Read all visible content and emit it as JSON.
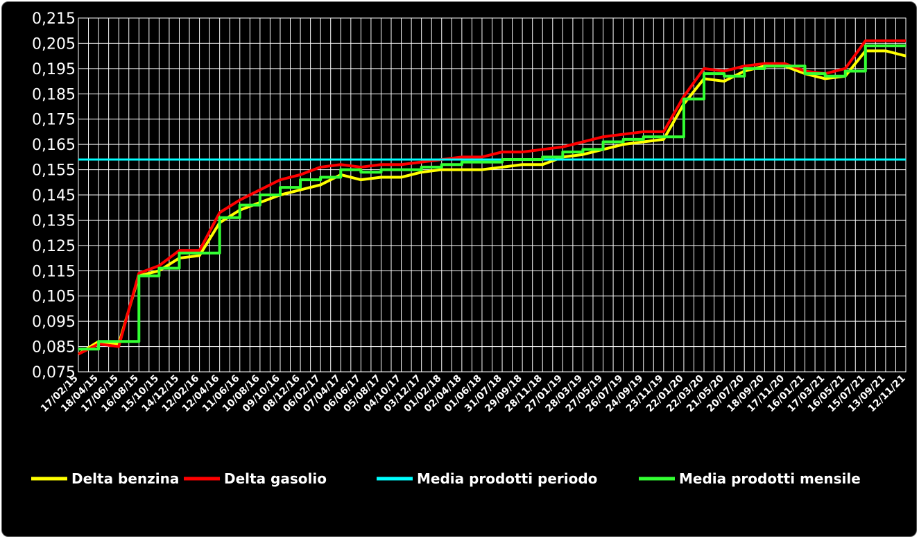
{
  "chart_data": {
    "type": "line",
    "title": "",
    "xlabel": "",
    "ylabel": "",
    "ylim": [
      0.075,
      0.215
    ],
    "y_ticks": [
      "0,075",
      "0,085",
      "0,095",
      "0,105",
      "0,115",
      "0,125",
      "0,135",
      "0,145",
      "0,155",
      "0,165",
      "0,175",
      "0,185",
      "0,195",
      "0,205",
      "0,215"
    ],
    "x_ticks": [
      "17/02/15",
      "18/04/15",
      "17/06/15",
      "16/08/15",
      "15/10/15",
      "14/12/15",
      "12/02/16",
      "12/04/16",
      "11/06/16",
      "10/08/16",
      "09/10/16",
      "08/12/16",
      "06/02/17",
      "07/04/17",
      "06/06/17",
      "05/08/17",
      "04/10/17",
      "03/12/17",
      "01/02/18",
      "02/04/18",
      "01/06/18",
      "31/07/18",
      "29/09/18",
      "28/11/18",
      "27/01/19",
      "28/03/19",
      "27/05/19",
      "26/07/19",
      "24/09/19",
      "23/11/19",
      "22/01/20",
      "22/03/20",
      "21/05/20",
      "20/07/20",
      "18/09/20",
      "17/11/20",
      "16/01/21",
      "17/03/21",
      "16/05/21",
      "15/07/21",
      "13/09/21",
      "12/11/21"
    ],
    "grid": true,
    "legend_position": "bottom",
    "series": [
      {
        "name": "Delta benzina",
        "color": "#ffff00",
        "values": [
          0.082,
          0.087,
          0.086,
          0.113,
          0.115,
          0.12,
          0.121,
          0.134,
          0.139,
          0.142,
          0.145,
          0.147,
          0.149,
          0.153,
          0.151,
          0.152,
          0.152,
          0.154,
          0.155,
          0.155,
          0.155,
          0.156,
          0.157,
          0.157,
          0.16,
          0.161,
          0.163,
          0.165,
          0.166,
          0.167,
          0.181,
          0.191,
          0.19,
          0.194,
          0.196,
          0.196,
          0.193,
          0.191,
          0.192,
          0.202,
          0.202,
          0.2
        ]
      },
      {
        "name": "Delta gasolio",
        "color": "#ff0000",
        "values": [
          0.082,
          0.086,
          0.085,
          0.114,
          0.117,
          0.123,
          0.123,
          0.138,
          0.143,
          0.147,
          0.151,
          0.153,
          0.156,
          0.157,
          0.156,
          0.157,
          0.157,
          0.158,
          0.159,
          0.16,
          0.16,
          0.162,
          0.162,
          0.163,
          0.164,
          0.166,
          0.168,
          0.169,
          0.17,
          0.17,
          0.184,
          0.195,
          0.194,
          0.196,
          0.197,
          0.197,
          0.194,
          0.193,
          0.195,
          0.206,
          0.206,
          0.206
        ]
      },
      {
        "name": "Media prodotti periodo",
        "color": "#00ffff",
        "values": [
          0.159,
          0.159,
          0.159,
          0.159,
          0.159,
          0.159,
          0.159,
          0.159,
          0.159,
          0.159,
          0.159,
          0.159,
          0.159,
          0.159,
          0.159,
          0.159,
          0.159,
          0.159,
          0.159,
          0.159,
          0.159,
          0.159,
          0.159,
          0.159,
          0.159,
          0.159,
          0.159,
          0.159,
          0.159,
          0.159,
          0.159,
          0.159,
          0.159,
          0.159,
          0.159,
          0.159,
          0.159,
          0.159,
          0.159,
          0.159,
          0.159,
          0.159
        ]
      },
      {
        "name": "Media prodotti mensile",
        "color": "#33ff33",
        "values": [
          0.084,
          0.087,
          0.087,
          0.113,
          0.116,
          0.122,
          0.122,
          0.136,
          0.141,
          0.145,
          0.148,
          0.151,
          0.152,
          0.155,
          0.154,
          0.155,
          0.155,
          0.156,
          0.157,
          0.158,
          0.158,
          0.159,
          0.159,
          0.16,
          0.162,
          0.163,
          0.166,
          0.167,
          0.168,
          0.168,
          0.183,
          0.193,
          0.192,
          0.195,
          0.196,
          0.196,
          0.193,
          0.192,
          0.194,
          0.204,
          0.204,
          0.204
        ]
      }
    ]
  }
}
